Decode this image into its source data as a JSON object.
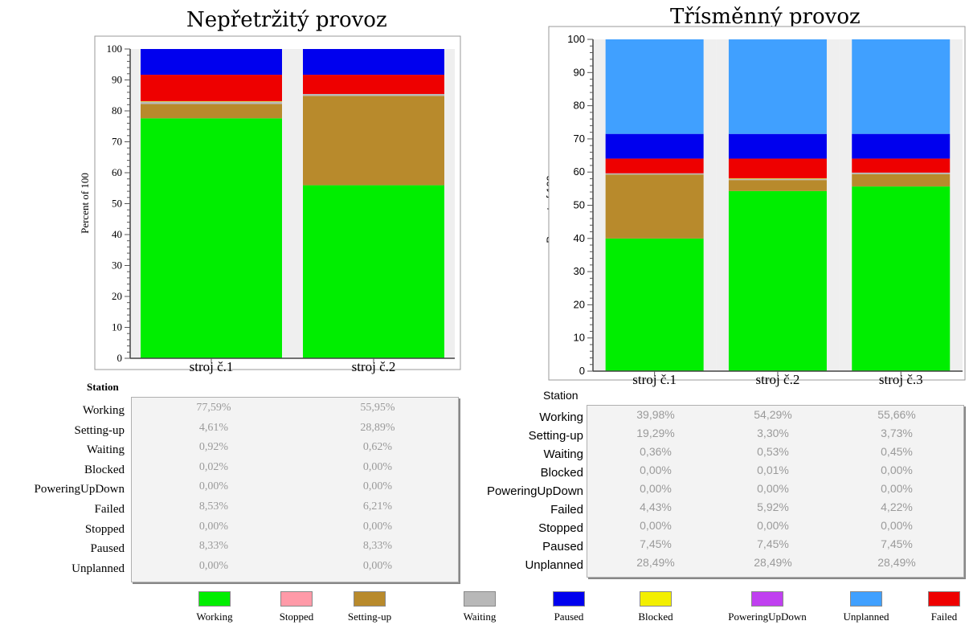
{
  "colors": {
    "Working": "#00ee00",
    "Stopped": "#ff9aa8",
    "Setting-up": "#b88a2c",
    "Waiting": "#b8b8b8",
    "Paused": "#0000ee",
    "Blocked": "#f3ef00",
    "PoweringUpDown": "#c040f0",
    "Unplanned": "#40a0ff",
    "Failed": "#ee0000"
  },
  "chart_data": [
    {
      "type": "bar",
      "stacked": true,
      "title": "Nepřetržitý provoz",
      "ylabel": "Percent of 100",
      "xlabel": "Station",
      "ylim": [
        0,
        100
      ],
      "yticks": [
        0,
        10,
        20,
        30,
        40,
        50,
        60,
        70,
        80,
        90,
        100
      ],
      "categories": [
        "stroj č.1",
        "stroj č.2"
      ],
      "series": [
        {
          "name": "Working",
          "values": [
            77.59,
            55.95
          ]
        },
        {
          "name": "Setting-up",
          "values": [
            4.61,
            28.89
          ]
        },
        {
          "name": "Waiting",
          "values": [
            0.92,
            0.62
          ]
        },
        {
          "name": "Blocked",
          "values": [
            0.02,
            0.0
          ]
        },
        {
          "name": "PoweringUpDown",
          "values": [
            0.0,
            0.0
          ]
        },
        {
          "name": "Failed",
          "values": [
            8.53,
            6.21
          ]
        },
        {
          "name": "Stopped",
          "values": [
            0.0,
            0.0
          ]
        },
        {
          "name": "Paused",
          "values": [
            8.33,
            8.33
          ]
        },
        {
          "name": "Unplanned",
          "values": [
            0.0,
            0.0
          ]
        }
      ],
      "table": {
        "rows": [
          "Working",
          "Setting-up",
          "Waiting",
          "Blocked",
          "PoweringUpDown",
          "Failed",
          "Stopped",
          "Paused",
          "Unplanned"
        ],
        "values": [
          [
            "77,59%",
            "55,95%"
          ],
          [
            "4,61%",
            "28,89%"
          ],
          [
            "0,92%",
            "0,62%"
          ],
          [
            "0,02%",
            "0,00%"
          ],
          [
            "0,00%",
            "0,00%"
          ],
          [
            "8,53%",
            "6,21%"
          ],
          [
            "0,00%",
            "0,00%"
          ],
          [
            "8,33%",
            "8,33%"
          ],
          [
            "0,00%",
            "0,00%"
          ]
        ]
      }
    },
    {
      "type": "bar",
      "stacked": true,
      "title": "Třísměnný provoz",
      "ylabel": "Percent of 100",
      "xlabel": "Station",
      "ylim": [
        0,
        100
      ],
      "yticks": [
        0,
        10,
        20,
        30,
        40,
        50,
        60,
        70,
        80,
        90,
        100
      ],
      "categories": [
        "stroj č.1",
        "stroj č.2",
        "stroj č.3"
      ],
      "series": [
        {
          "name": "Working",
          "values": [
            39.98,
            54.29,
            55.66
          ]
        },
        {
          "name": "Setting-up",
          "values": [
            19.29,
            3.3,
            3.73
          ]
        },
        {
          "name": "Waiting",
          "values": [
            0.36,
            0.53,
            0.45
          ]
        },
        {
          "name": "Blocked",
          "values": [
            0.0,
            0.01,
            0.0
          ]
        },
        {
          "name": "PoweringUpDown",
          "values": [
            0.0,
            0.0,
            0.0
          ]
        },
        {
          "name": "Failed",
          "values": [
            4.43,
            5.92,
            4.22
          ]
        },
        {
          "name": "Stopped",
          "values": [
            0.0,
            0.0,
            0.0
          ]
        },
        {
          "name": "Paused",
          "values": [
            7.45,
            7.45,
            7.45
          ]
        },
        {
          "name": "Unplanned",
          "values": [
            28.49,
            28.49,
            28.49
          ]
        }
      ],
      "table": {
        "rows": [
          "Working",
          "Setting-up",
          "Waiting",
          "Blocked",
          "PoweringUpDown",
          "Failed",
          "Stopped",
          "Paused",
          "Unplanned"
        ],
        "values": [
          [
            "39,98%",
            "54,29%",
            "55,66%"
          ],
          [
            "19,29%",
            "3,30%",
            "3,73%"
          ],
          [
            "0,36%",
            "0,53%",
            "0,45%"
          ],
          [
            "0,00%",
            "0,01%",
            "0,00%"
          ],
          [
            "0,00%",
            "0,00%",
            "0,00%"
          ],
          [
            "4,43%",
            "5,92%",
            "4,22%"
          ],
          [
            "0,00%",
            "0,00%",
            "0,00%"
          ],
          [
            "7,45%",
            "7,45%",
            "7,45%"
          ],
          [
            "28,49%",
            "28,49%",
            "28,49%"
          ]
        ]
      }
    }
  ],
  "legend": [
    "Working",
    "Stopped",
    "Setting-up",
    "Waiting",
    "Paused",
    "Blocked",
    "PoweringUpDown",
    "Unplanned",
    "Failed"
  ]
}
